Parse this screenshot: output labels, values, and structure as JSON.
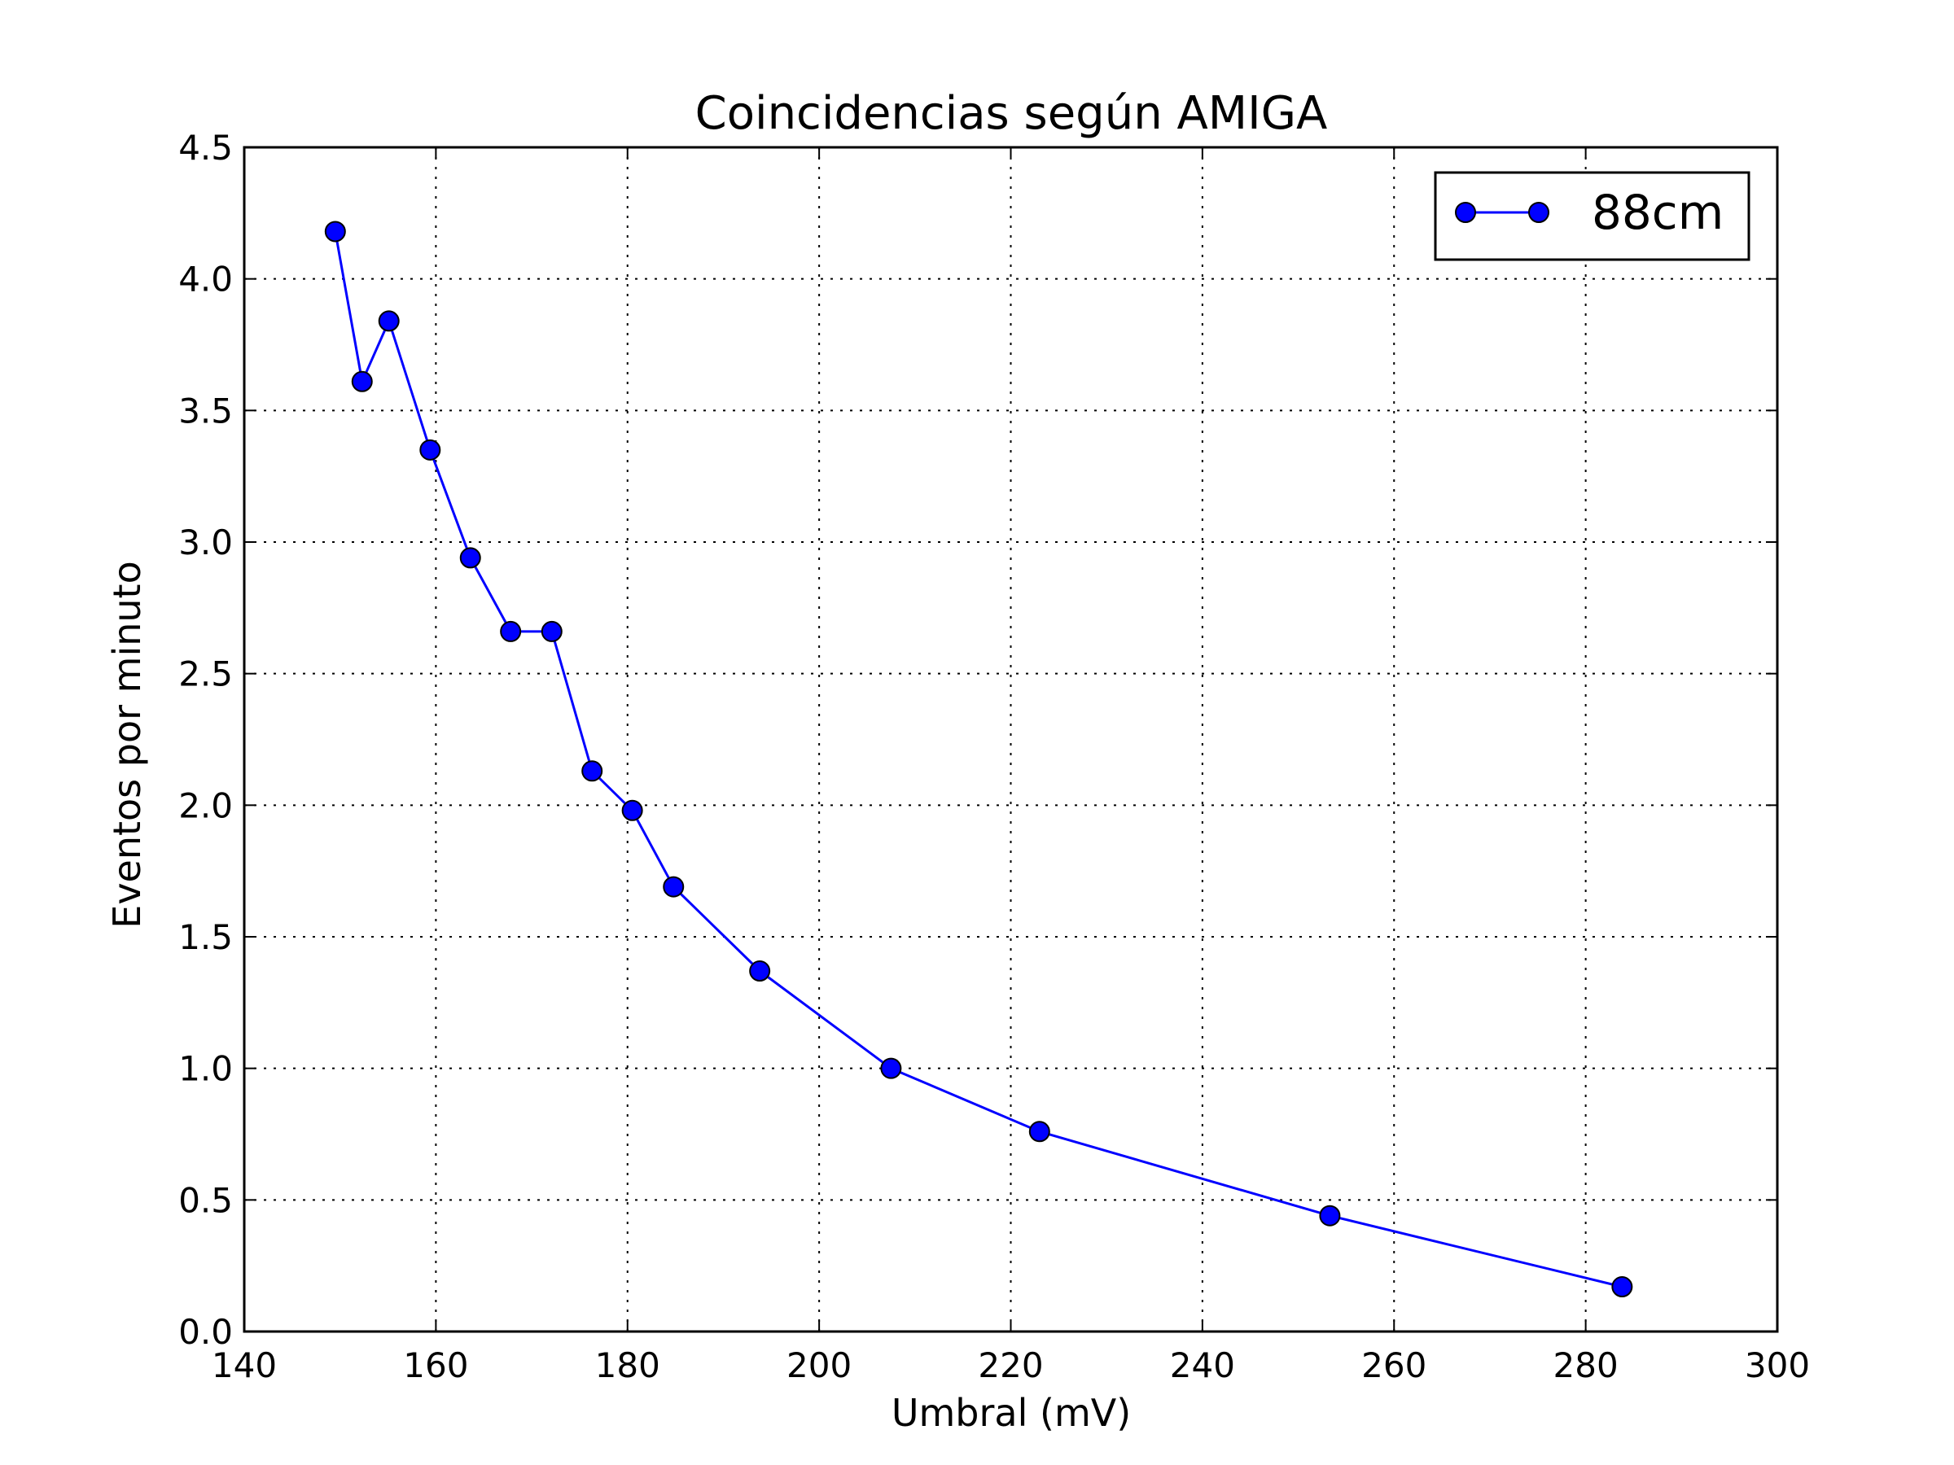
{
  "chart_data": {
    "type": "line",
    "title": "Coincidencias según AMIGA",
    "xlabel": "Umbral (mV)",
    "ylabel": "Eventos por minuto",
    "xlim": [
      140,
      300
    ],
    "ylim": [
      0,
      4.5
    ],
    "x_ticks": [
      "140",
      "160",
      "180",
      "200",
      "220",
      "240",
      "260",
      "280",
      "300"
    ],
    "y_ticks": [
      "0.0",
      "0.5",
      "1.0",
      "1.5",
      "2.0",
      "2.5",
      "3.0",
      "3.5",
      "4.0",
      "4.5"
    ],
    "grid": true,
    "legend_position": "top-right",
    "series": [
      {
        "name": "88cm",
        "color": "#0000ff",
        "marker": "circle",
        "x": [
          149.5,
          152.3,
          155.1,
          159.4,
          163.6,
          167.8,
          172.1,
          176.3,
          180.5,
          184.8,
          193.8,
          207.5,
          223.0,
          253.3,
          283.8
        ],
        "y": [
          4.18,
          3.61,
          3.84,
          3.35,
          2.94,
          2.66,
          2.66,
          2.13,
          1.98,
          1.69,
          1.37,
          1.0,
          0.76,
          0.44,
          0.17
        ]
      }
    ]
  }
}
